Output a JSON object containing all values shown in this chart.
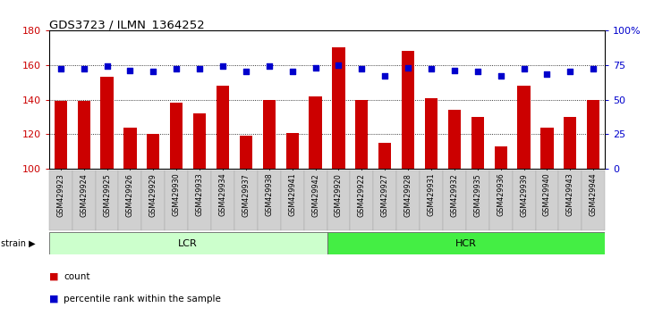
{
  "title": "GDS3723 / ILMN_1364252",
  "categories": [
    "GSM429923",
    "GSM429924",
    "GSM429925",
    "GSM429926",
    "GSM429929",
    "GSM429930",
    "GSM429933",
    "GSM429934",
    "GSM429937",
    "GSM429938",
    "GSM429941",
    "GSM429942",
    "GSM429920",
    "GSM429922",
    "GSM429927",
    "GSM429928",
    "GSM429931",
    "GSM429932",
    "GSM429935",
    "GSM429936",
    "GSM429939",
    "GSM429940",
    "GSM429943",
    "GSM429944"
  ],
  "bar_values": [
    139,
    139,
    153,
    124,
    120,
    138,
    132,
    148,
    119,
    140,
    121,
    142,
    170,
    140,
    115,
    168,
    141,
    134,
    130,
    113,
    148,
    124,
    130,
    140
  ],
  "dot_values_pct": [
    72,
    72,
    74,
    71,
    70,
    72,
    72,
    74,
    70,
    74,
    70,
    73,
    75,
    72,
    67,
    73,
    72,
    71,
    70,
    67,
    72,
    68,
    70,
    72
  ],
  "lcr_count": 12,
  "hcr_count": 12,
  "ylim_left": [
    100,
    180
  ],
  "ylim_right": [
    0,
    100
  ],
  "yticks_left": [
    100,
    120,
    140,
    160,
    180
  ],
  "yticks_right": [
    0,
    25,
    50,
    75,
    100
  ],
  "bar_color": "#cc0000",
  "dot_color": "#0000cc",
  "lcr_color": "#ccffcc",
  "hcr_color": "#44ee44",
  "strain_label": "strain",
  "lcr_label": "LCR",
  "hcr_label": "HCR",
  "legend_count": "count",
  "legend_pct": "percentile rank within the sample",
  "bg_color": "#ffffff",
  "plot_bg": "#ffffff",
  "tick_bg": "#d0d0d0",
  "grid_color": "#000000"
}
